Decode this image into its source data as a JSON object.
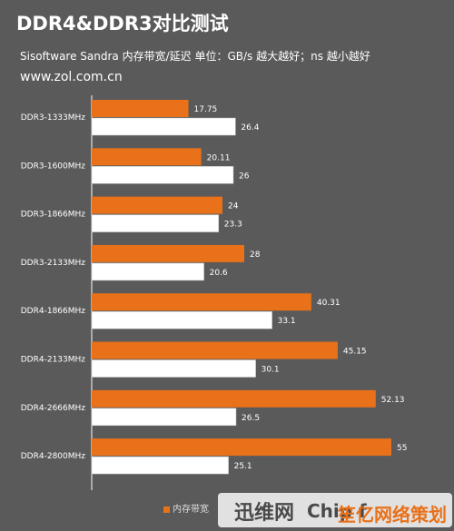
{
  "title": "DDR4&DDR3对比测试",
  "subtitle": "Sisoftware Sandra 内存带宽/延迟    单位：GB/s 越大越好；ns 越小越好",
  "source": "www.zol.com.cn",
  "legend_label": "内存带宽",
  "watermark": {
    "left": "迅维网",
    "right": "Chip f",
    "stamp": "笙亿网络策划"
  },
  "colors": {
    "orange": "#e8711a",
    "white": "#ffffff",
    "background": "#5a5a5a",
    "axis": "#ffffff"
  },
  "chart_data": {
    "type": "bar",
    "orientation": "horizontal",
    "categories": [
      "DDR3-1333MHz",
      "DDR3-1600MHz",
      "DDR3-1866MHz",
      "DDR3-2133MHz",
      "DDR4-1866MHz",
      "DDR4-2133MHz",
      "DDR4-2666MHz",
      "DDR4-2800MHz"
    ],
    "series": [
      {
        "name": "内存带宽",
        "color": "#e8711a",
        "values": [
          17.75,
          20.11,
          24,
          28,
          40.31,
          45.15,
          52.13,
          55
        ]
      },
      {
        "color": "#ffffff",
        "values": [
          26.4,
          26,
          23.3,
          20.6,
          33.1,
          30.1,
          26.5,
          25.1
        ]
      }
    ],
    "xlim": [
      0,
      65
    ]
  }
}
